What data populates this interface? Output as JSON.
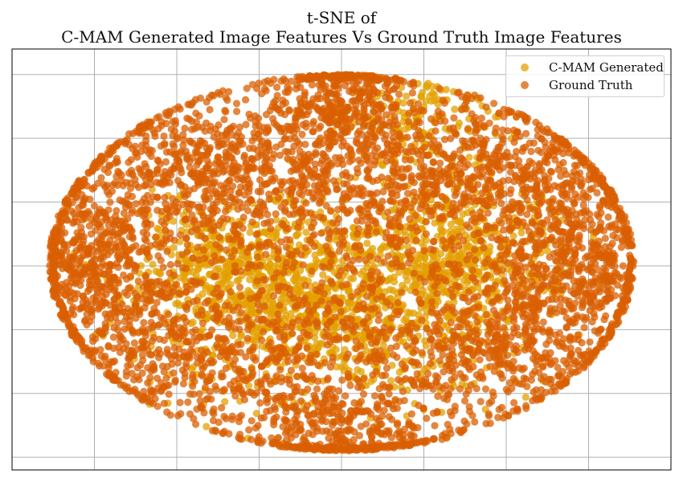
{
  "chart_data": {
    "type": "scatter",
    "title_line1": "t-SNE of",
    "title_line2": "C-MAM Generated Image Features Vs Ground Truth Image Features",
    "xlabel": "",
    "ylabel": "",
    "grid": true,
    "tick_labels_shown": false,
    "legend_position": "top-right",
    "series": [
      {
        "name": "C-MAM Generated",
        "color": "#E3A000",
        "clusters": [
          {
            "x": 0.0,
            "y": -0.6,
            "sx": 1.0,
            "sy": 0.75,
            "n": 900
          },
          {
            "x": -1.3,
            "y": -0.1,
            "sx": 0.7,
            "sy": 0.6,
            "n": 500
          },
          {
            "x": 1.4,
            "y": 0.2,
            "sx": 0.7,
            "sy": 0.6,
            "n": 500
          },
          {
            "x": 0.9,
            "y": 2.3,
            "sx": 0.5,
            "sy": 0.4,
            "n": 150
          }
        ]
      },
      {
        "name": "Ground Truth",
        "color": "#D95F02",
        "clusters": [
          {
            "x": -3.0,
            "y": 0.0,
            "sx": 0.55,
            "sy": 0.8,
            "n": 700
          },
          {
            "x": -1.6,
            "y": 1.6,
            "sx": 0.9,
            "sy": 0.55,
            "n": 650
          },
          {
            "x": 0.0,
            "y": 2.6,
            "sx": 0.45,
            "sy": 0.5,
            "n": 450
          },
          {
            "x": 1.8,
            "y": 1.5,
            "sx": 0.9,
            "sy": 0.55,
            "n": 650
          },
          {
            "x": 2.9,
            "y": 0.0,
            "sx": 0.6,
            "sy": 0.8,
            "n": 700
          },
          {
            "x": 1.6,
            "y": -1.3,
            "sx": 0.9,
            "sy": 0.6,
            "n": 550
          },
          {
            "x": -1.5,
            "y": -1.4,
            "sx": 0.9,
            "sy": 0.6,
            "n": 550
          },
          {
            "x": 0.0,
            "y": -2.7,
            "sx": 0.6,
            "sy": 0.45,
            "n": 450
          },
          {
            "x": 0.0,
            "y": 0.6,
            "sx": 1.3,
            "sy": 0.9,
            "n": 600
          }
        ]
      }
    ],
    "xlim": [
      -4.0,
      4.0
    ],
    "ylim": [
      -3.2,
      3.4
    ],
    "x_gridlines": [
      -3.0,
      -2.0,
      -1.0,
      0.0,
      1.0,
      2.0,
      3.0
    ],
    "y_gridlines": [
      -3.0,
      -2.0,
      -1.0,
      0.0,
      1.0,
      2.0,
      3.0
    ]
  }
}
